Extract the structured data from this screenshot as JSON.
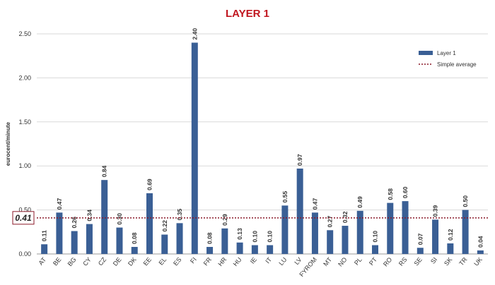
{
  "chart_data": {
    "type": "bar",
    "title": "LAYER 1",
    "y_label": "eurocent/minute",
    "categories": [
      "AT",
      "BE",
      "BG",
      "CY",
      "CZ",
      "DE",
      "DK",
      "EE",
      "EL",
      "ES",
      "FI",
      "FR",
      "HR",
      "HU",
      "IE",
      "IT",
      "LU",
      "LV",
      "FYROM",
      "MT",
      "NO",
      "PL",
      "PT",
      "RO",
      "RS",
      "SE",
      "SI",
      "SK",
      "TR",
      "UK"
    ],
    "series": [
      {
        "name": "Layer 1",
        "color": "#3a5f95",
        "values": [
          0.11,
          0.47,
          0.26,
          0.34,
          0.84,
          0.3,
          0.08,
          0.69,
          0.22,
          0.35,
          2.4,
          0.08,
          0.29,
          0.13,
          0.1,
          0.1,
          0.55,
          0.97,
          0.47,
          0.27,
          0.32,
          0.49,
          0.1,
          0.58,
          0.6,
          0.07,
          0.39,
          0.12,
          0.5,
          0.04
        ],
        "value_labels": [
          "0.11",
          "0.47",
          "0.26",
          "0.34",
          "0.84",
          "0.30",
          "0.08",
          "0.69",
          "0.22",
          "0.35",
          "2.40",
          "0.08",
          "0.29",
          "0.13",
          "0.10",
          "0.10",
          "0.55",
          "0.97",
          "0.47",
          "0.27",
          "0.32",
          "0.49",
          "0.10",
          "0.58",
          "0.60",
          "0.07",
          "0.39",
          "0.12",
          "0.50",
          "0.04"
        ]
      }
    ],
    "reference_line": {
      "name": "Simple average",
      "value": 0.41,
      "label": "0.41",
      "color": "#8b1a2a"
    },
    "ylim": [
      0,
      2.5
    ],
    "yticks": [
      {
        "value": 0,
        "label": "0.00"
      },
      {
        "value": 0.5,
        "label": "0.50"
      },
      {
        "value": 1,
        "label": "1.00"
      },
      {
        "value": 1.5,
        "label": "1.50"
      },
      {
        "value": 2,
        "label": "2.00"
      },
      {
        "value": 2.5,
        "label": "2.50"
      }
    ],
    "grid": true,
    "legend": "upper right"
  }
}
